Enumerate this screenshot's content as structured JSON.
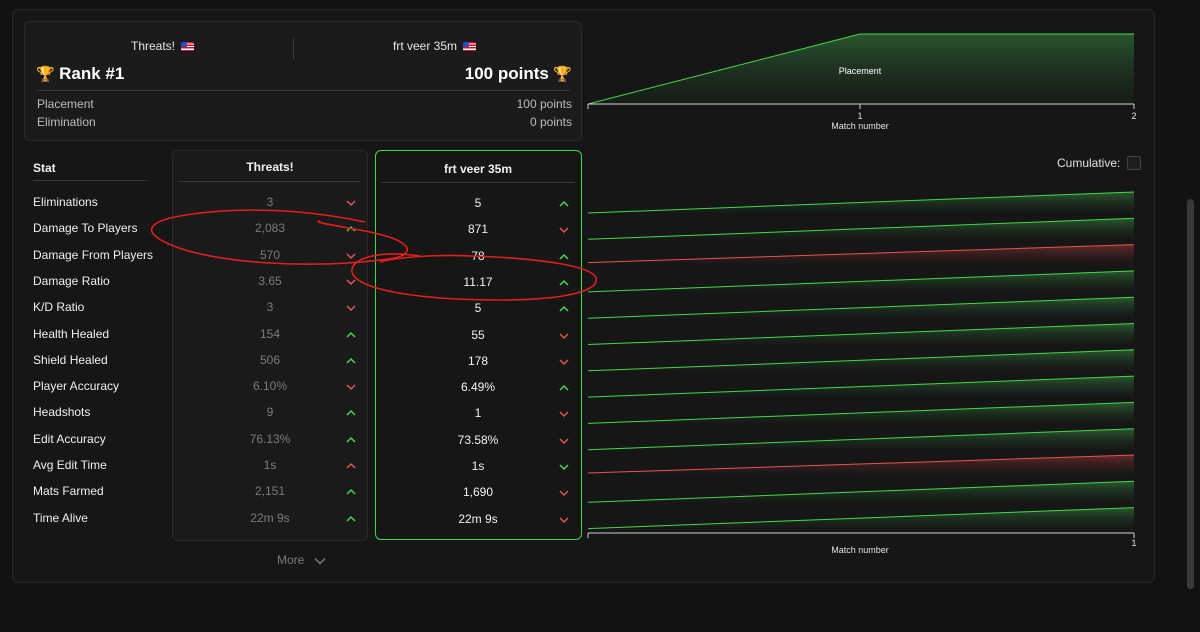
{
  "header": {
    "player_a": "Threats!",
    "player_b": "frt veer 35m",
    "rank": "Rank #1",
    "points": "100 points",
    "breakdown": [
      {
        "label": "Placement",
        "value": "100 points"
      },
      {
        "label": "Elimination",
        "value": "0 points"
      }
    ]
  },
  "table": {
    "stat_header": "Stat",
    "col_a_header": "Threats!",
    "col_b_header": "frt veer 35m",
    "rows": [
      {
        "stat": "Eliminations",
        "a": "3",
        "a_dir": "down",
        "b": "5",
        "b_dir": "up"
      },
      {
        "stat": "Damage To Players",
        "a": "2,083",
        "a_dir": "up",
        "b": "871",
        "b_dir": "down"
      },
      {
        "stat": "Damage From Players",
        "a": "570",
        "a_dir": "down",
        "b": "78",
        "b_dir": "up"
      },
      {
        "stat": "Damage Ratio",
        "a": "3.65",
        "a_dir": "down",
        "b": "11.17",
        "b_dir": "up"
      },
      {
        "stat": "K/D Ratio",
        "a": "3",
        "a_dir": "down",
        "b": "5",
        "b_dir": "up"
      },
      {
        "stat": "Health Healed",
        "a": "154",
        "a_dir": "up",
        "b": "55",
        "b_dir": "down"
      },
      {
        "stat": "Shield Healed",
        "a": "506",
        "a_dir": "up",
        "b": "178",
        "b_dir": "down"
      },
      {
        "stat": "Player Accuracy",
        "a": "6.10%",
        "a_dir": "down",
        "b": "6.49%",
        "b_dir": "up"
      },
      {
        "stat": "Headshots",
        "a": "9",
        "a_dir": "up",
        "b": "1",
        "b_dir": "down"
      },
      {
        "stat": "Edit Accuracy",
        "a": "76.13%",
        "a_dir": "up",
        "b": "73.58%",
        "b_dir": "down"
      },
      {
        "stat": "Avg Edit Time",
        "a": "1s",
        "a_dir": "up-red",
        "b": "1s",
        "b_dir": "down-green"
      },
      {
        "stat": "Mats Farmed",
        "a": "2,151",
        "a_dir": "up",
        "b": "1,690",
        "b_dir": "down"
      },
      {
        "stat": "Time Alive",
        "a": "22m 9s",
        "a_dir": "up",
        "b": "22m 9s",
        "b_dir": "down"
      }
    ],
    "more_label": "More"
  },
  "controls": {
    "cumulative_label": "Cumulative:"
  },
  "chart_data": [
    {
      "type": "area",
      "x": [
        0,
        1,
        2
      ],
      "series": [
        {
          "name": "Placement",
          "values": [
            0,
            100,
            100
          ]
        }
      ],
      "xlabel": "Match number",
      "tick_labels": [
        "1",
        "2"
      ]
    },
    {
      "type": "line",
      "xlabel": "Match number",
      "tick_labels": [
        "1"
      ],
      "rows": [
        {
          "stat": "Eliminations",
          "trend": "up"
        },
        {
          "stat": "Damage To Players",
          "trend": "up"
        },
        {
          "stat": "Damage From Players",
          "trend": "down"
        },
        {
          "stat": "Damage Ratio",
          "trend": "up"
        },
        {
          "stat": "K/D Ratio",
          "trend": "up"
        },
        {
          "stat": "Health Healed",
          "trend": "up"
        },
        {
          "stat": "Shield Healed",
          "trend": "up"
        },
        {
          "stat": "Player Accuracy",
          "trend": "up"
        },
        {
          "stat": "Headshots",
          "trend": "up"
        },
        {
          "stat": "Edit Accuracy",
          "trend": "up"
        },
        {
          "stat": "Avg Edit Time",
          "trend": "down"
        },
        {
          "stat": "Mats Farmed",
          "trend": "up"
        },
        {
          "stat": "Time Alive",
          "trend": "up"
        }
      ]
    }
  ],
  "colors": {
    "up": "#43d94b",
    "down": "#e2564f",
    "accent": "#41d84a"
  }
}
